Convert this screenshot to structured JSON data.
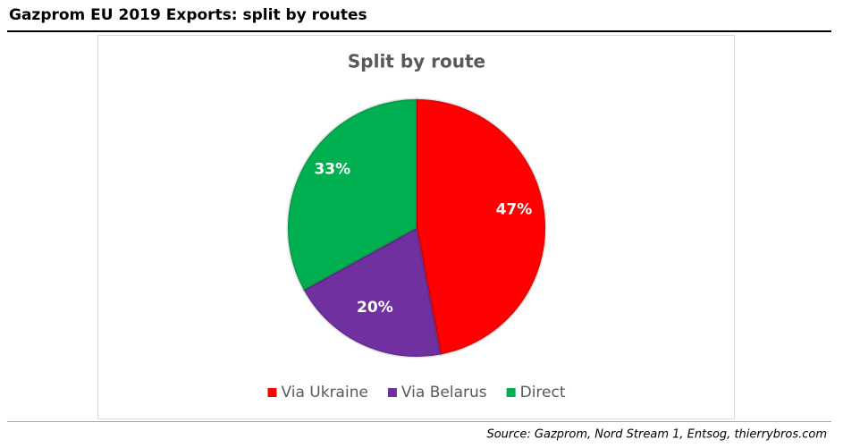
{
  "header": {
    "title": "Gazprom EU 2019 Exports: split by routes"
  },
  "source": "Source: Gazprom, Nord Stream 1, Entsog, thierrybros.com",
  "chart_data": {
    "type": "pie",
    "title": "Split by route",
    "categories": [
      "Via Ukraine",
      "Via Belarus",
      "Direct"
    ],
    "values": [
      47,
      20,
      33
    ],
    "value_labels": [
      "47%",
      "20%",
      "33%"
    ],
    "colors": [
      "#ff0000",
      "#7030a0",
      "#00b050"
    ],
    "legend": "bottom"
  }
}
